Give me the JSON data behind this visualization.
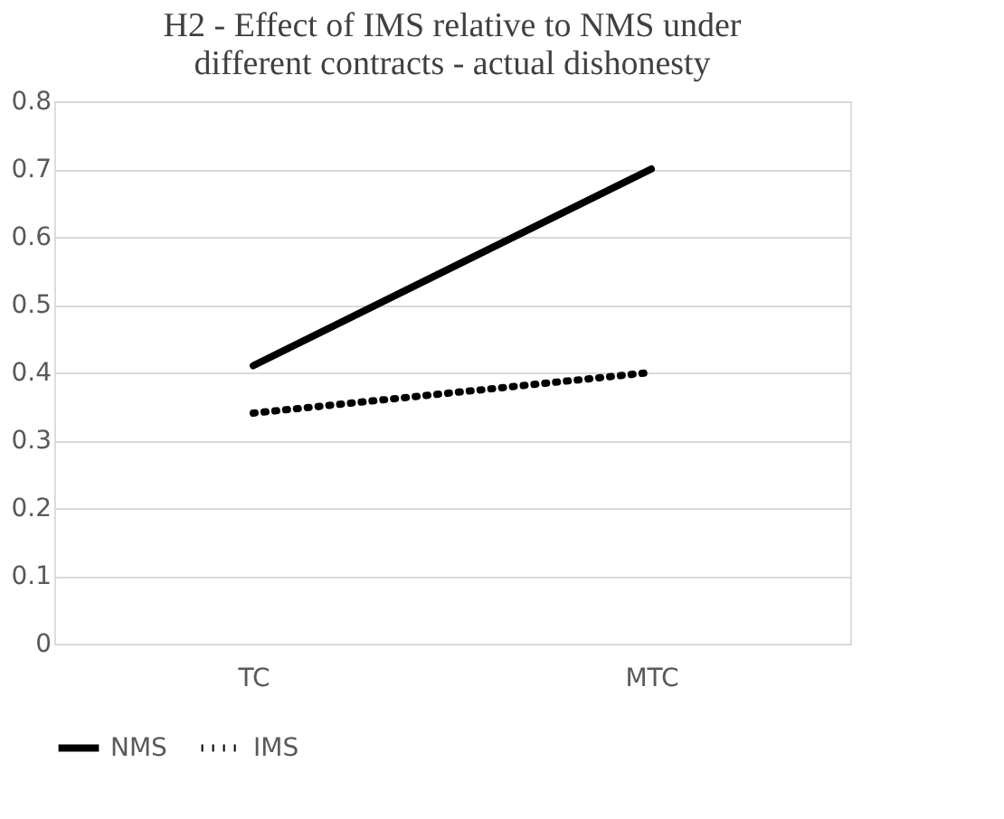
{
  "chart_data": {
    "type": "line",
    "title": [
      "H2 - Effect of IMS relative to NMS under",
      "different contracts - actual dishonesty"
    ],
    "categories": [
      "TC",
      "MTC"
    ],
    "series": [
      {
        "name": "NMS",
        "color": "#000000",
        "values": [
          0.41,
          0.7
        ],
        "line_style": "solid"
      },
      {
        "name": "IMS",
        "color": "#000000",
        "values": [
          0.34,
          0.4
        ],
        "line_style": "dotted"
      }
    ],
    "ylim": [
      0,
      0.8
    ],
    "yticks": [
      0,
      0.1,
      0.2,
      0.3,
      0.4,
      0.5,
      0.6,
      0.7,
      0.8
    ],
    "grid": "y",
    "legend": "bottom",
    "marker": "none"
  }
}
